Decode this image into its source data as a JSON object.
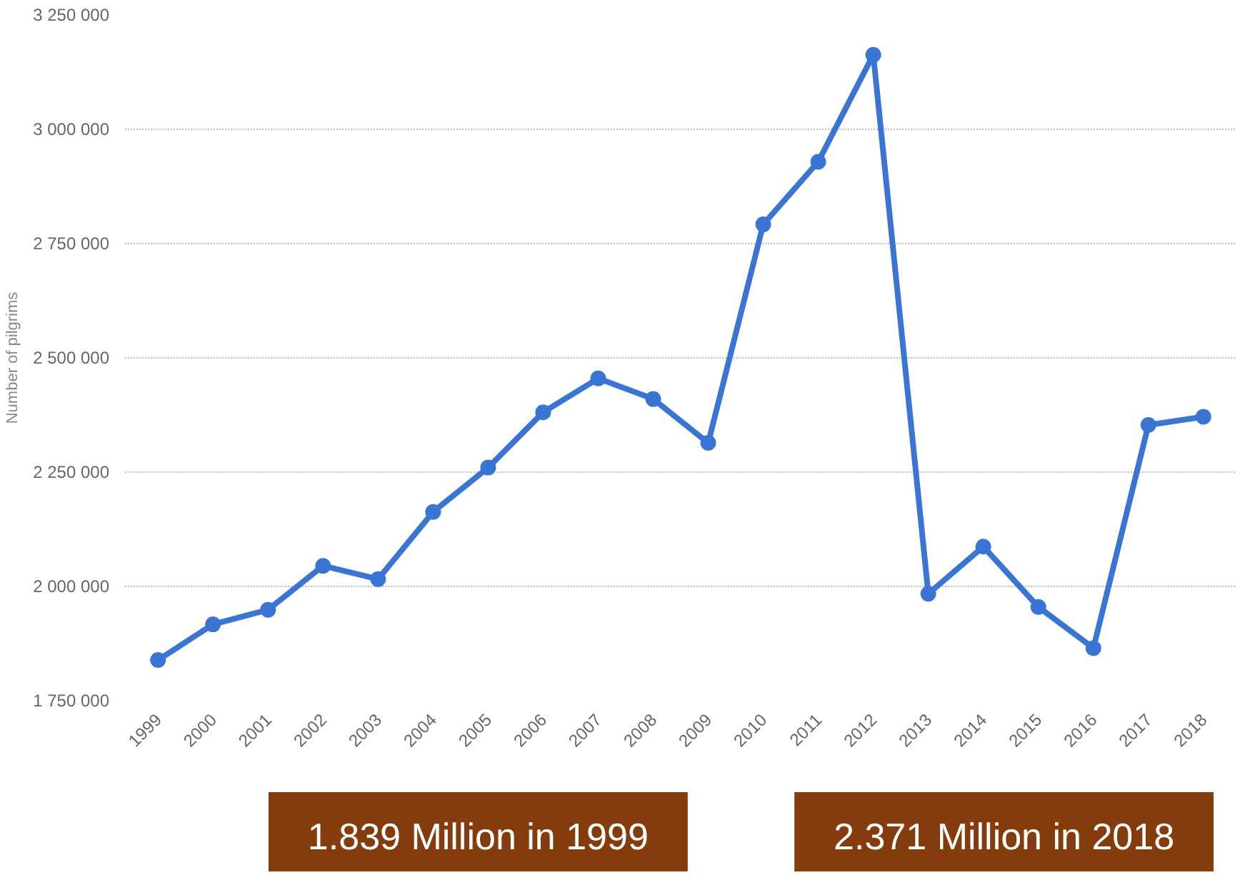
{
  "chart_data": {
    "type": "line",
    "ylabel": "Number of pilgrims",
    "categories": [
      "1999",
      "2000",
      "2001",
      "2002",
      "2003",
      "2004",
      "2005",
      "2006",
      "2007",
      "2008",
      "2009",
      "2010",
      "2011",
      "2012",
      "2013",
      "2014",
      "2015",
      "2016",
      "2017",
      "2018"
    ],
    "series": [
      {
        "color": "#3a75d4",
        "values": [
          1839000,
          1917000,
          1949000,
          2045000,
          2016000,
          2163000,
          2260000,
          2381000,
          2455000,
          2410000,
          2314000,
          2792000,
          2929000,
          3163000,
          1984000,
          2087000,
          1955000,
          1865000,
          2353000,
          2371000
        ]
      }
    ],
    "ylim": [
      1750000,
      3250000
    ],
    "yticks": [
      {
        "value": 1750000,
        "label": "1 750 000"
      },
      {
        "value": 2000000,
        "label": "2 000 000"
      },
      {
        "value": 2250000,
        "label": "2 250 000"
      },
      {
        "value": 2500000,
        "label": "2 500 000"
      },
      {
        "value": 2750000,
        "label": "2 750 000"
      },
      {
        "value": 3000000,
        "label": "3 000 000"
      },
      {
        "value": 3250000,
        "label": "3 250 000"
      }
    ],
    "grid": "y",
    "marker": "circle",
    "line_style": "solid",
    "annotations": [
      "1.839 Million in 1999",
      "2.371 Million in 2018"
    ]
  }
}
